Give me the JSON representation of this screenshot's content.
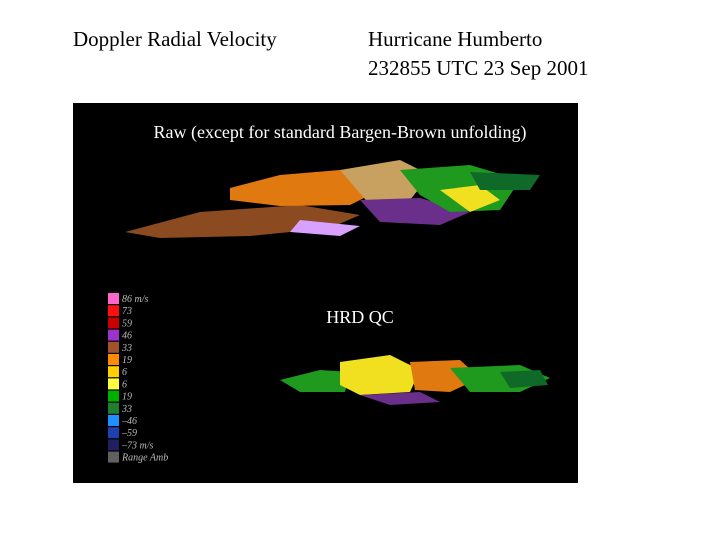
{
  "header": {
    "left_title": "Doppler Radial Velocity",
    "right_title_line1": "Hurricane Humberto",
    "right_title_line2": "232855 UTC 23 Sep 2001"
  },
  "panels": {
    "raw_label": "Raw (except for standard Bargen-Brown unfolding)",
    "qc_label": "HRD QC"
  },
  "legend": {
    "items": [
      {
        "label": "86 m/s",
        "color": "#ff66cc"
      },
      {
        "label": "73",
        "color": "#ff1010"
      },
      {
        "label": "59",
        "color": "#c80000"
      },
      {
        "label": "46",
        "color": "#9933cc"
      },
      {
        "label": "33",
        "color": "#a0522d"
      },
      {
        "label": "19",
        "color": "#ff8c00"
      },
      {
        "label": "6",
        "color": "#ffd000"
      },
      {
        "label": "6",
        "color": "#ffff40"
      },
      {
        "label": "19",
        "color": "#00b000"
      },
      {
        "label": "33",
        "color": "#1f7f2f"
      },
      {
        "label": "–46",
        "color": "#1e90ff"
      },
      {
        "label": "–59",
        "color": "#2040b0"
      },
      {
        "label": "–73 m/s",
        "color": "#202060"
      },
      {
        "label": "Range Amb",
        "color": "#606060"
      }
    ]
  }
}
